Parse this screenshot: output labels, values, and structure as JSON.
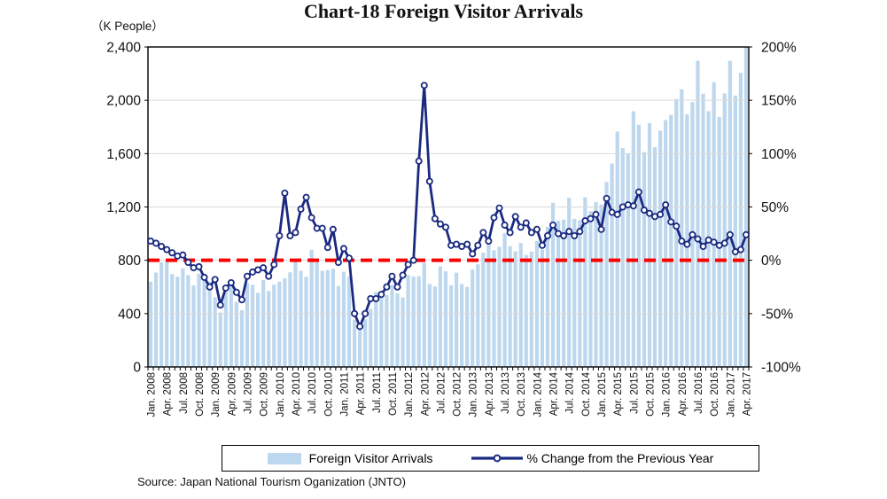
{
  "title": "Chart-18 Foreign Visitor Arrivals",
  "left_axis": {
    "unit_label": "（K People）",
    "ticks": [
      "2,400",
      "2,000",
      "1,600",
      "1,200",
      "800",
      "400",
      "0"
    ],
    "min": 0,
    "max": 2400,
    "step": 400
  },
  "right_axis": {
    "ticks": [
      "200%",
      "150%",
      "100%",
      "50%",
      "0%",
      "-50%",
      "-100%"
    ],
    "min": -100,
    "max": 200,
    "step": 50
  },
  "legend": {
    "bars_label": "Foreign Visitor Arrivals",
    "line_label": "% Change from the Previous Year"
  },
  "source": "Source: Japan National Tourism Oganization (JNTO)",
  "colors": {
    "bar": "#BDD7EE",
    "line": "#1B2A80",
    "marker_fill": "#FFFFFF",
    "zero_line": "#FF0000",
    "grid": "#D9D9D9",
    "border": "#000000",
    "text": "#111111"
  },
  "chart_data": {
    "type": "bar+line combo",
    "title": "Chart-18 Foreign Visitor Arrivals",
    "bar_series_name": "Foreign Visitor Arrivals (K People, left axis)",
    "line_series_name": "% Change from the Previous Year (right axis)",
    "left_ylim": [
      0,
      2400
    ],
    "right_ylim": [
      -100,
      200
    ],
    "grid": "horizontal gridlines every 400 (left) / 50% (right); red dashed line at 0%",
    "legend_position": "bottom center, boxed",
    "x_tick_labels": [
      "Jan. 2008",
      "Apr. 2008",
      "Jul. 2008",
      "Oct. 2008",
      "Jan. 2009",
      "Apr. 2009",
      "Jul. 2009",
      "Oct. 2009",
      "Jan. 2010",
      "Apr. 2010",
      "Jul. 2010",
      "Oct. 2010",
      "Jan. 2011",
      "Apr. 2011",
      "Jul. 2011",
      "Oct. 2011",
      "Jan. 2012",
      "Apr. 2012",
      "Jul. 2012",
      "Oct. 2012",
      "Jan. 2013",
      "Apr. 2013",
      "Jul. 2013",
      "Oct. 2013",
      "Jan. 2014",
      "Apr. 2014",
      "Jul. 2014",
      "Oct. 2014",
      "Jan. 2015",
      "Apr. 2015",
      "Jul. 2015",
      "Oct. 2015",
      "Jan. 2016",
      "Apr. 2016",
      "Jul. 2016",
      "Oct. 2016",
      "Jan. 2017",
      "Apr. 2017"
    ],
    "months": [
      "Jan. 2008",
      "Feb. 2008",
      "Mar. 2008",
      "Apr. 2008",
      "May 2008",
      "Jun. 2008",
      "Jul. 2008",
      "Aug. 2008",
      "Sep. 2008",
      "Oct. 2008",
      "Nov. 2008",
      "Dec. 2008",
      "Jan. 2009",
      "Feb. 2009",
      "Mar. 2009",
      "Apr. 2009",
      "May 2009",
      "Jun. 2009",
      "Jul. 2009",
      "Aug. 2009",
      "Sep. 2009",
      "Oct. 2009",
      "Nov. 2009",
      "Dec. 2009",
      "Jan. 2010",
      "Feb. 2010",
      "Mar. 2010",
      "Apr. 2010",
      "May 2010",
      "Jun. 2010",
      "Jul. 2010",
      "Aug. 2010",
      "Sep. 2010",
      "Oct. 2010",
      "Nov. 2010",
      "Dec. 2010",
      "Jan. 2011",
      "Feb. 2011",
      "Mar. 2011",
      "Apr. 2011",
      "May 2011",
      "Jun. 2011",
      "Jul. 2011",
      "Aug. 2011",
      "Sep. 2011",
      "Oct. 2011",
      "Nov. 2011",
      "Dec. 2011",
      "Jan. 2012",
      "Feb. 2012",
      "Mar. 2012",
      "Apr. 2012",
      "May 2012",
      "Jun. 2012",
      "Jul. 2012",
      "Aug. 2012",
      "Sep. 2012",
      "Oct. 2012",
      "Nov. 2012",
      "Dec. 2012",
      "Jan. 2013",
      "Feb. 2013",
      "Mar. 2013",
      "Apr. 2013",
      "May 2013",
      "Jun. 2013",
      "Jul. 2013",
      "Aug. 2013",
      "Sep. 2013",
      "Oct. 2013",
      "Nov. 2013",
      "Dec. 2013",
      "Jan. 2014",
      "Feb. 2014",
      "Mar. 2014",
      "Apr. 2014",
      "May 2014",
      "Jun. 2014",
      "Jul. 2014",
      "Aug. 2014",
      "Sep. 2014",
      "Oct. 2014",
      "Nov. 2014",
      "Dec. 2014",
      "Jan. 2015",
      "Feb. 2015",
      "Mar. 2015",
      "Apr. 2015",
      "May 2015",
      "Jun. 2015",
      "Jul. 2015",
      "Aug. 2015",
      "Sep. 2015",
      "Oct. 2015",
      "Nov. 2015",
      "Dec. 2015",
      "Jan. 2016",
      "Feb. 2016",
      "Mar. 2016",
      "Apr. 2016",
      "May 2016",
      "Jun. 2016",
      "Jul. 2016",
      "Aug. 2016",
      "Sep. 2016",
      "Oct. 2016",
      "Nov. 2016",
      "Dec. 2016",
      "Jan. 2017",
      "Feb. 2017",
      "Mar. 2017",
      "Apr. 2017"
    ],
    "arrivals_k": [
      640,
      708,
      786,
      789,
      697,
      677,
      740,
      689,
      612,
      700,
      674,
      640,
      522,
      408,
      578,
      626,
      488,
      425,
      629,
      616,
      555,
      651,
      570,
      617,
      640,
      665,
      710,
      788,
      721,
      677,
      879,
      802,
      721,
      727,
      736,
      607,
      714,
      679,
      353,
      296,
      358,
      434,
      562,
      547,
      539,
      616,
      552,
      521,
      689,
      678,
      680,
      781,
      623,
      604,
      754,
      717,
      613,
      707,
      623,
      600,
      730,
      770,
      857,
      923,
      875,
      901,
      1003,
      906,
      867,
      929,
      840,
      865,
      944,
      881,
      1051,
      1231,
      1097,
      1105,
      1270,
      1111,
      1099,
      1272,
      1168,
      1236,
      1218,
      1387,
      1526,
      1765,
      1642,
      1602,
      1918,
      1817,
      1612,
      1829,
      1648,
      1773,
      1852,
      1891,
      2010,
      2082,
      1894,
      1986,
      2297,
      2049,
      1918,
      2136,
      1875,
      2051,
      2296,
      2036,
      2206,
      2579
    ],
    "pct_change_yoy": [
      18,
      16,
      13,
      10,
      7,
      4,
      5,
      -2,
      -7,
      -6,
      -16,
      -25,
      -18,
      -42,
      -26,
      -21,
      -30,
      -37,
      -15,
      -11,
      -9,
      -7,
      -15,
      -4,
      23,
      63,
      23,
      26,
      48,
      59,
      40,
      30,
      30,
      12,
      29,
      -2,
      11,
      2,
      -50,
      -62,
      -50,
      -36,
      -36,
      -32,
      -25,
      -15,
      -25,
      -14,
      -4,
      0,
      93,
      164,
      74,
      39,
      34,
      31,
      14,
      15,
      13,
      15,
      6,
      14,
      26,
      18,
      40,
      49,
      33,
      26,
      41,
      31,
      35,
      26,
      29,
      14,
      23,
      33,
      25,
      23,
      27,
      23,
      27,
      37,
      39,
      43,
      29,
      58,
      45,
      43,
      50,
      52,
      51,
      64,
      47,
      44,
      41,
      43,
      52,
      36,
      32,
      18,
      15,
      24,
      20,
      13,
      19,
      17,
      14,
      16,
      24,
      8,
      10,
      24
    ]
  }
}
